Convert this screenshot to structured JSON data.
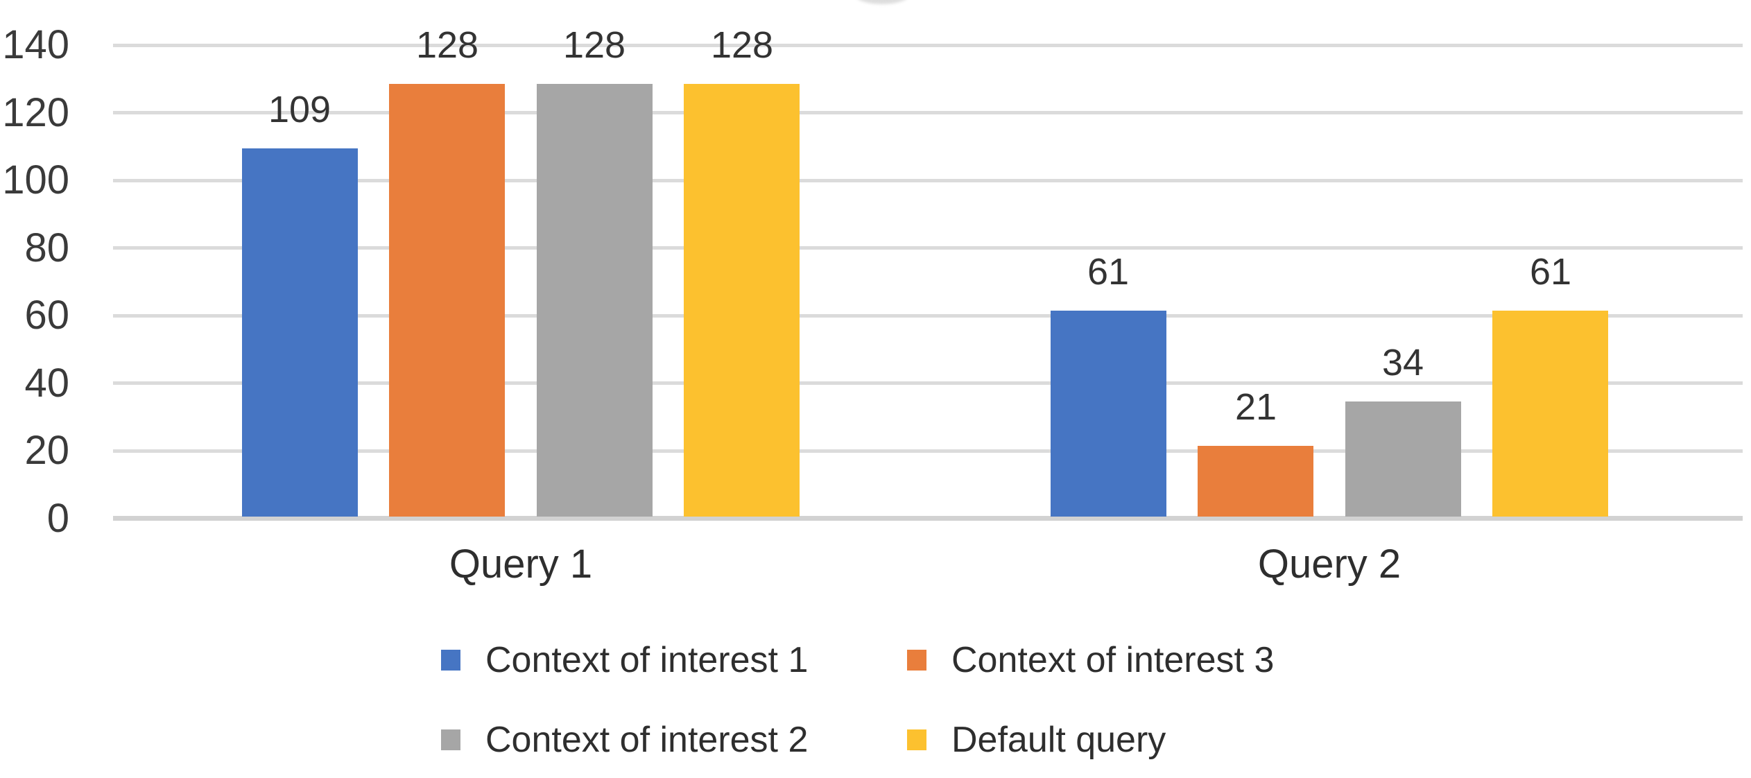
{
  "chart_data": {
    "type": "bar",
    "categories": [
      "Query 1",
      "Query 2"
    ],
    "series": [
      {
        "name": "Context of interest 1",
        "color": "#4675C3",
        "values": [
          109,
          61
        ]
      },
      {
        "name": "Context of interest 3",
        "color": "#E97E3C",
        "values": [
          128,
          21
        ]
      },
      {
        "name": "Context of interest 2",
        "color": "#A6A6A6",
        "values": [
          128,
          34
        ]
      },
      {
        "name": "Default query",
        "color": "#FCC12F",
        "values": [
          128,
          61
        ]
      }
    ],
    "ylim": [
      0,
      140
    ],
    "yticks": [
      0,
      20,
      40,
      60,
      80,
      100,
      120,
      140
    ],
    "grid": true,
    "data_labels": true,
    "legend_position": "bottom",
    "gridline_color": "#DBDBDB",
    "axis_text_color": "#3A3A3A"
  }
}
